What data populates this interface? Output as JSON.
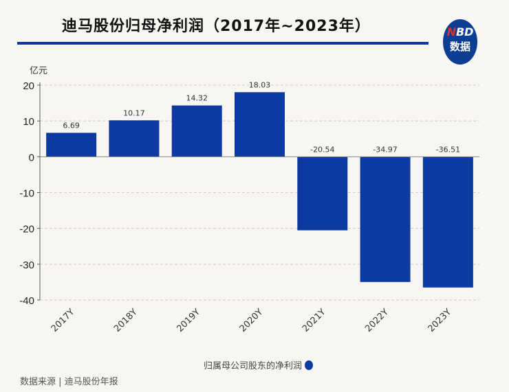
{
  "title": "迪马股份归母净利润（2017年~2023年）",
  "logo": {
    "line1_accent": "N",
    "line1_rest": "BD",
    "line2": "数据"
  },
  "source": "数据来源 | 迪马股份年报",
  "chart_data": {
    "type": "bar",
    "title": "迪马股份归母净利润（2017年~2023年）",
    "ylabel": "亿元",
    "xlabel": "",
    "categories": [
      "2017Y",
      "2018Y",
      "2019Y",
      "2020Y",
      "2021Y",
      "2022Y",
      "2023Y"
    ],
    "series": [
      {
        "name": "归属母公司股东的净利润",
        "values": [
          6.69,
          10.17,
          14.32,
          18.03,
          -20.54,
          -34.97,
          -36.51
        ],
        "labels": [
          "6.69",
          "10.17",
          "14.32",
          "18.03",
          "-20.54",
          "-34.97",
          "-36.51"
        ],
        "color": "#0d3aa0"
      }
    ],
    "ylim": [
      -40,
      20
    ],
    "yticks": [
      20,
      10,
      0,
      -10,
      -20,
      -30,
      -40
    ],
    "ytick_labels": [
      "20",
      "10",
      "0",
      "-10",
      "-20",
      "-30",
      "-40"
    ],
    "grid": true,
    "legend": "bottom-center"
  }
}
